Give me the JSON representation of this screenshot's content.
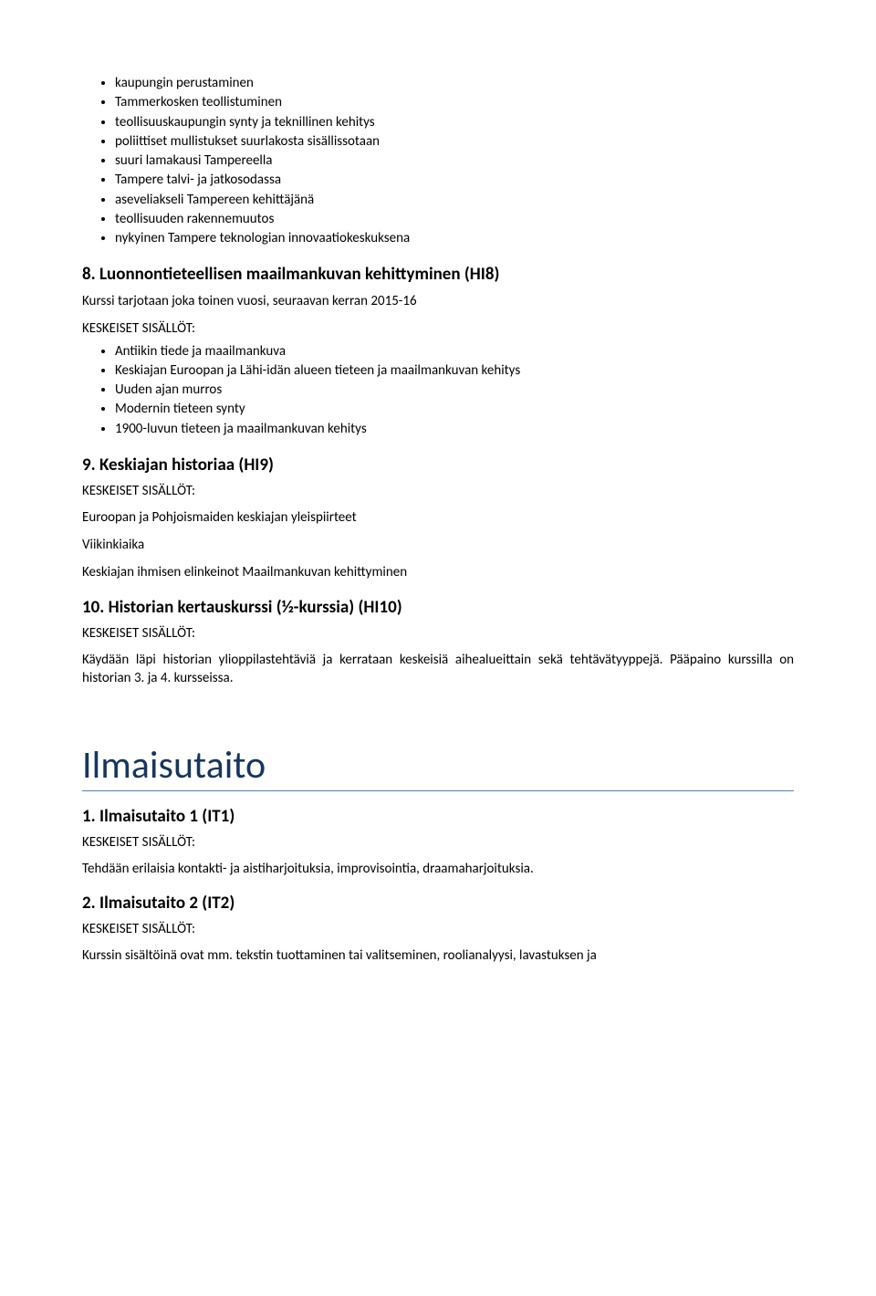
{
  "top_bullets": [
    "kaupungin perustaminen",
    "Tammerkosken teollistuminen",
    "teollisuuskaupungin synty ja teknillinen kehitys",
    "poliittiset mullistukset suurlakosta sisällissotaan",
    "suuri lamakausi Tampereella",
    "Tampere talvi- ja jatkosodassa",
    "aseveliakseli Tampereen kehittäjänä",
    "teollisuuden rakennemuutos",
    "nykyinen Tampere teknologian innovaatiokeskuksena"
  ],
  "sec8": {
    "heading": "8. Luonnontieteellisen maailmankuvan kehittyminen (HI8)",
    "note": "Kurssi tarjotaan joka toinen vuosi, seuraavan kerran 2015-16",
    "label": "KESKEISET SISÄLLÖT:",
    "bullets": [
      "Antiikin tiede ja maailmankuva",
      "Keskiajan Euroopan ja Lähi-idän alueen tieteen ja maailmankuvan kehitys",
      "Uuden ajan murros",
      "Modernin tieteen synty",
      "1900-luvun tieteen ja maailmankuvan kehitys"
    ]
  },
  "sec9": {
    "heading": "9. Keskiajan historiaa (HI9)",
    "label": "KESKEISET SISÄLLÖT:",
    "p1": "Euroopan ja Pohjoismaiden keskiajan yleispiirteet",
    "p2": "Viikinkiaika",
    "p3": "Keskiajan ihmisen elinkeinot Maailmankuvan kehittyminen"
  },
  "sec10": {
    "heading": "10. Historian kertauskurssi (1⁄2-kurssia) (HI10)",
    "label": "KESKEISET SISÄLLÖT:",
    "p1": "Käydään läpi historian ylioppilastehtäviä ja kerrataan keskeisiä aihealueittain sekä tehtävätyyppejä. Pääpaino kurssilla on historian 3. ja 4. kursseissa."
  },
  "bigtitle": "Ilmaisutaito",
  "it1": {
    "heading": "1. Ilmaisutaito 1 (IT1)",
    "label": "KESKEISET SISÄLLÖT:",
    "p1": "Tehdään erilaisia kontakti- ja aistiharjoituksia, improvisointia, draamaharjoituksia."
  },
  "it2": {
    "heading": "2. Ilmaisutaito 2 (IT2)",
    "label": "KESKEISET SISÄLLÖT:",
    "p1": "Kurssin  sisältöinä  ovat  mm.  tekstin  tuottaminen  tai  valitseminen,  roolianalyysi,  lavastuksen  ja"
  }
}
